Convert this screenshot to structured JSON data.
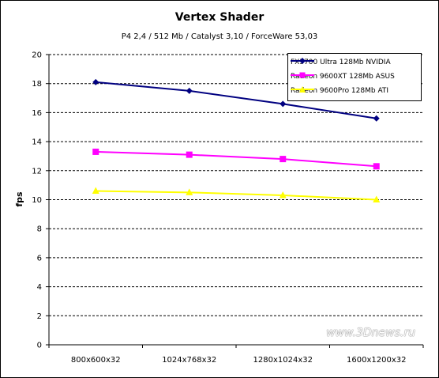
{
  "chart_data": {
    "type": "line",
    "title": "Vertex Shader",
    "subtitle": "P4 2,4 / 512 Mb / Catalyst 3,10 / ForceWare 53,03",
    "xlabel": "",
    "ylabel": "fps",
    "ylim": [
      0,
      20
    ],
    "yticks": [
      0,
      2,
      4,
      6,
      8,
      10,
      12,
      14,
      16,
      18,
      20
    ],
    "categories": [
      "800x600x32",
      "1024x768x32",
      "1280x1024x32",
      "1600x1200x32"
    ],
    "grid": "horizontal dashed",
    "legend_position": "top-right",
    "series": [
      {
        "name": "FX5700 Ultra 128Mb NVIDIA",
        "values": [
          18.1,
          17.5,
          16.6,
          15.6
        ],
        "color": "#000080",
        "marker": "diamond"
      },
      {
        "name": "Radeon 9600XT 128Mb ASUS",
        "values": [
          13.3,
          13.1,
          12.8,
          12.3
        ],
        "color": "#ff00ff",
        "marker": "square"
      },
      {
        "name": "Radeon 9600Pro 128Mb ATI",
        "values": [
          10.6,
          10.5,
          10.3,
          10.0
        ],
        "color": "#ffff00",
        "marker": "triangle"
      }
    ],
    "watermark": "www.3Dnews.ru"
  }
}
